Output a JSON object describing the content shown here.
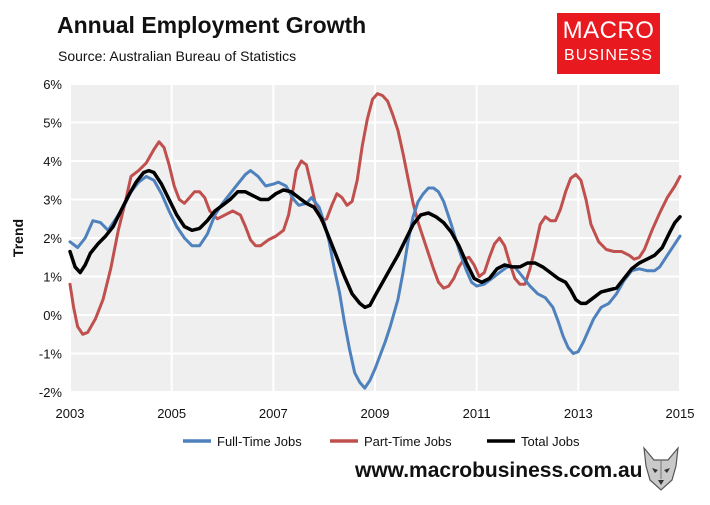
{
  "header": {
    "title": "Annual Employment Growth",
    "subtitle": "Source: Australian Bureau of Statistics"
  },
  "logo": {
    "line1": "MACRO",
    "line2": "BUSINESS",
    "color": "#e8191f",
    "icon": "wolf-mascot-icon"
  },
  "footer": {
    "website": "www.macrobusiness.com.au"
  },
  "chart_data": {
    "type": "line",
    "title": "Annual Employment Growth",
    "xlabel": "",
    "ylabel": "Trend",
    "xlim": [
      2003,
      2015
    ],
    "ylim": [
      -2,
      6
    ],
    "x_ticks": [
      "2003",
      "2005",
      "2007",
      "2009",
      "2011",
      "2013",
      "2015"
    ],
    "x_tick_values": [
      2003,
      2005,
      2007,
      2009,
      2011,
      2013,
      2015
    ],
    "y_ticks": [
      "-2%",
      "-1%",
      "0%",
      "1%",
      "2%",
      "3%",
      "4%",
      "5%",
      "6%"
    ],
    "y_tick_values": [
      -2,
      -1,
      0,
      1,
      2,
      3,
      4,
      5,
      6
    ],
    "grid": true,
    "legend": "bottom",
    "plot_background": "#efefef",
    "series": [
      {
        "name": "Full-Time Jobs",
        "color": "#4f81bd",
        "width": 3,
        "points": [
          [
            2003.0,
            1.9
          ],
          [
            2003.15,
            1.75
          ],
          [
            2003.3,
            2.0
          ],
          [
            2003.45,
            2.45
          ],
          [
            2003.6,
            2.4
          ],
          [
            2003.75,
            2.2
          ],
          [
            2003.9,
            2.5
          ],
          [
            2004.05,
            2.8
          ],
          [
            2004.2,
            3.2
          ],
          [
            2004.35,
            3.45
          ],
          [
            2004.5,
            3.6
          ],
          [
            2004.65,
            3.5
          ],
          [
            2004.8,
            3.15
          ],
          [
            2004.95,
            2.7
          ],
          [
            2005.1,
            2.3
          ],
          [
            2005.25,
            2.0
          ],
          [
            2005.4,
            1.8
          ],
          [
            2005.55,
            1.8
          ],
          [
            2005.7,
            2.1
          ],
          [
            2005.85,
            2.6
          ],
          [
            2006.0,
            2.9
          ],
          [
            2006.15,
            3.15
          ],
          [
            2006.3,
            3.4
          ],
          [
            2006.45,
            3.65
          ],
          [
            2006.55,
            3.75
          ],
          [
            2006.7,
            3.6
          ],
          [
            2006.85,
            3.35
          ],
          [
            2007.0,
            3.4
          ],
          [
            2007.1,
            3.45
          ],
          [
            2007.25,
            3.35
          ],
          [
            2007.4,
            3.0
          ],
          [
            2007.5,
            2.85
          ],
          [
            2007.65,
            2.9
          ],
          [
            2007.75,
            3.05
          ],
          [
            2007.9,
            2.8
          ],
          [
            2008.0,
            2.4
          ],
          [
            2008.1,
            1.9
          ],
          [
            2008.2,
            1.2
          ],
          [
            2008.3,
            0.6
          ],
          [
            2008.4,
            -0.2
          ],
          [
            2008.5,
            -0.9
          ],
          [
            2008.6,
            -1.5
          ],
          [
            2008.7,
            -1.75
          ],
          [
            2008.8,
            -1.9
          ],
          [
            2008.9,
            -1.7
          ],
          [
            2009.0,
            -1.4
          ],
          [
            2009.1,
            -1.05
          ],
          [
            2009.2,
            -0.7
          ],
          [
            2009.3,
            -0.3
          ],
          [
            2009.45,
            0.4
          ],
          [
            2009.55,
            1.1
          ],
          [
            2009.65,
            1.9
          ],
          [
            2009.75,
            2.55
          ],
          [
            2009.85,
            2.95
          ],
          [
            2009.95,
            3.15
          ],
          [
            2010.05,
            3.3
          ],
          [
            2010.15,
            3.3
          ],
          [
            2010.25,
            3.2
          ],
          [
            2010.35,
            2.95
          ],
          [
            2010.5,
            2.35
          ],
          [
            2010.65,
            1.7
          ],
          [
            2010.8,
            1.15
          ],
          [
            2010.9,
            0.85
          ],
          [
            2011.0,
            0.75
          ],
          [
            2011.15,
            0.8
          ],
          [
            2011.3,
            0.95
          ],
          [
            2011.45,
            1.1
          ],
          [
            2011.6,
            1.25
          ],
          [
            2011.75,
            1.25
          ],
          [
            2011.9,
            1.0
          ],
          [
            2012.05,
            0.75
          ],
          [
            2012.2,
            0.55
          ],
          [
            2012.35,
            0.45
          ],
          [
            2012.5,
            0.2
          ],
          [
            2012.6,
            -0.15
          ],
          [
            2012.7,
            -0.55
          ],
          [
            2012.8,
            -0.85
          ],
          [
            2012.9,
            -1.0
          ],
          [
            2013.0,
            -0.95
          ],
          [
            2013.1,
            -0.7
          ],
          [
            2013.2,
            -0.4
          ],
          [
            2013.3,
            -0.1
          ],
          [
            2013.45,
            0.2
          ],
          [
            2013.6,
            0.3
          ],
          [
            2013.75,
            0.55
          ],
          [
            2013.9,
            0.9
          ],
          [
            2014.05,
            1.15
          ],
          [
            2014.2,
            1.2
          ],
          [
            2014.35,
            1.15
          ],
          [
            2014.5,
            1.15
          ],
          [
            2014.6,
            1.25
          ],
          [
            2014.75,
            1.55
          ],
          [
            2014.9,
            1.85
          ],
          [
            2015.0,
            2.05
          ]
        ]
      },
      {
        "name": "Part-Time Jobs",
        "color": "#c0504d",
        "width": 3,
        "points": [
          [
            2003.0,
            0.8
          ],
          [
            2003.07,
            0.2
          ],
          [
            2003.15,
            -0.3
          ],
          [
            2003.25,
            -0.5
          ],
          [
            2003.35,
            -0.45
          ],
          [
            2003.5,
            -0.1
          ],
          [
            2003.65,
            0.4
          ],
          [
            2003.8,
            1.2
          ],
          [
            2003.95,
            2.2
          ],
          [
            2004.1,
            3.0
          ],
          [
            2004.2,
            3.6
          ],
          [
            2004.35,
            3.75
          ],
          [
            2004.5,
            3.95
          ],
          [
            2004.65,
            4.3
          ],
          [
            2004.75,
            4.5
          ],
          [
            2004.85,
            4.35
          ],
          [
            2004.95,
            3.9
          ],
          [
            2005.05,
            3.35
          ],
          [
            2005.15,
            3.0
          ],
          [
            2005.25,
            2.9
          ],
          [
            2005.35,
            3.05
          ],
          [
            2005.45,
            3.2
          ],
          [
            2005.55,
            3.2
          ],
          [
            2005.65,
            3.05
          ],
          [
            2005.75,
            2.7
          ],
          [
            2005.9,
            2.5
          ],
          [
            2006.05,
            2.6
          ],
          [
            2006.2,
            2.7
          ],
          [
            2006.35,
            2.6
          ],
          [
            2006.45,
            2.3
          ],
          [
            2006.55,
            1.95
          ],
          [
            2006.65,
            1.8
          ],
          [
            2006.75,
            1.8
          ],
          [
            2006.9,
            1.95
          ],
          [
            2007.05,
            2.05
          ],
          [
            2007.2,
            2.2
          ],
          [
            2007.3,
            2.6
          ],
          [
            2007.4,
            3.35
          ],
          [
            2007.45,
            3.75
          ],
          [
            2007.55,
            4.0
          ],
          [
            2007.65,
            3.9
          ],
          [
            2007.75,
            3.35
          ],
          [
            2007.85,
            2.75
          ],
          [
            2007.95,
            2.45
          ],
          [
            2008.05,
            2.5
          ],
          [
            2008.15,
            2.85
          ],
          [
            2008.25,
            3.15
          ],
          [
            2008.35,
            3.05
          ],
          [
            2008.45,
            2.85
          ],
          [
            2008.55,
            2.95
          ],
          [
            2008.65,
            3.5
          ],
          [
            2008.75,
            4.4
          ],
          [
            2008.85,
            5.1
          ],
          [
            2008.95,
            5.6
          ],
          [
            2009.05,
            5.75
          ],
          [
            2009.15,
            5.7
          ],
          [
            2009.25,
            5.55
          ],
          [
            2009.35,
            5.2
          ],
          [
            2009.45,
            4.8
          ],
          [
            2009.55,
            4.2
          ],
          [
            2009.65,
            3.55
          ],
          [
            2009.75,
            2.9
          ],
          [
            2009.85,
            2.4
          ],
          [
            2009.95,
            2.0
          ],
          [
            2010.05,
            1.6
          ],
          [
            2010.15,
            1.2
          ],
          [
            2010.25,
            0.85
          ],
          [
            2010.35,
            0.7
          ],
          [
            2010.45,
            0.75
          ],
          [
            2010.55,
            0.95
          ],
          [
            2010.65,
            1.25
          ],
          [
            2010.75,
            1.45
          ],
          [
            2010.85,
            1.5
          ],
          [
            2010.95,
            1.3
          ],
          [
            2011.05,
            1.0
          ],
          [
            2011.15,
            1.1
          ],
          [
            2011.25,
            1.5
          ],
          [
            2011.35,
            1.85
          ],
          [
            2011.45,
            2.0
          ],
          [
            2011.55,
            1.8
          ],
          [
            2011.65,
            1.35
          ],
          [
            2011.75,
            0.95
          ],
          [
            2011.85,
            0.8
          ],
          [
            2011.95,
            0.8
          ],
          [
            2012.05,
            1.2
          ],
          [
            2012.15,
            1.75
          ],
          [
            2012.25,
            2.35
          ],
          [
            2012.35,
            2.55
          ],
          [
            2012.45,
            2.45
          ],
          [
            2012.55,
            2.45
          ],
          [
            2012.65,
            2.75
          ],
          [
            2012.75,
            3.2
          ],
          [
            2012.85,
            3.55
          ],
          [
            2012.95,
            3.65
          ],
          [
            2013.05,
            3.5
          ],
          [
            2013.15,
            3.0
          ],
          [
            2013.25,
            2.35
          ],
          [
            2013.4,
            1.9
          ],
          [
            2013.55,
            1.7
          ],
          [
            2013.7,
            1.65
          ],
          [
            2013.85,
            1.65
          ],
          [
            2014.0,
            1.55
          ],
          [
            2014.1,
            1.45
          ],
          [
            2014.2,
            1.5
          ],
          [
            2014.3,
            1.7
          ],
          [
            2014.45,
            2.2
          ],
          [
            2014.6,
            2.65
          ],
          [
            2014.75,
            3.05
          ],
          [
            2014.9,
            3.35
          ],
          [
            2015.0,
            3.6
          ]
        ]
      },
      {
        "name": "Total Jobs",
        "color": "#000000",
        "width": 3.5,
        "points": [
          [
            2003.0,
            1.65
          ],
          [
            2003.1,
            1.25
          ],
          [
            2003.2,
            1.1
          ],
          [
            2003.3,
            1.3
          ],
          [
            2003.4,
            1.6
          ],
          [
            2003.55,
            1.85
          ],
          [
            2003.7,
            2.05
          ],
          [
            2003.85,
            2.3
          ],
          [
            2004.0,
            2.7
          ],
          [
            2004.15,
            3.1
          ],
          [
            2004.3,
            3.45
          ],
          [
            2004.45,
            3.7
          ],
          [
            2004.55,
            3.75
          ],
          [
            2004.65,
            3.7
          ],
          [
            2004.8,
            3.4
          ],
          [
            2004.95,
            3.0
          ],
          [
            2005.1,
            2.6
          ],
          [
            2005.25,
            2.3
          ],
          [
            2005.4,
            2.2
          ],
          [
            2005.55,
            2.25
          ],
          [
            2005.7,
            2.45
          ],
          [
            2005.85,
            2.7
          ],
          [
            2006.0,
            2.85
          ],
          [
            2006.15,
            3.0
          ],
          [
            2006.3,
            3.2
          ],
          [
            2006.45,
            3.2
          ],
          [
            2006.6,
            3.1
          ],
          [
            2006.75,
            3.0
          ],
          [
            2006.9,
            3.0
          ],
          [
            2007.05,
            3.15
          ],
          [
            2007.2,
            3.25
          ],
          [
            2007.35,
            3.2
          ],
          [
            2007.5,
            3.05
          ],
          [
            2007.65,
            2.9
          ],
          [
            2007.8,
            2.8
          ],
          [
            2007.95,
            2.5
          ],
          [
            2008.1,
            2.0
          ],
          [
            2008.25,
            1.5
          ],
          [
            2008.4,
            1.0
          ],
          [
            2008.55,
            0.55
          ],
          [
            2008.7,
            0.3
          ],
          [
            2008.8,
            0.2
          ],
          [
            2008.9,
            0.25
          ],
          [
            2009.0,
            0.5
          ],
          [
            2009.15,
            0.85
          ],
          [
            2009.3,
            1.2
          ],
          [
            2009.45,
            1.55
          ],
          [
            2009.6,
            1.95
          ],
          [
            2009.75,
            2.35
          ],
          [
            2009.9,
            2.6
          ],
          [
            2010.05,
            2.65
          ],
          [
            2010.2,
            2.55
          ],
          [
            2010.35,
            2.4
          ],
          [
            2010.5,
            2.15
          ],
          [
            2010.65,
            1.8
          ],
          [
            2010.8,
            1.35
          ],
          [
            2010.95,
            0.95
          ],
          [
            2011.1,
            0.85
          ],
          [
            2011.25,
            0.95
          ],
          [
            2011.4,
            1.2
          ],
          [
            2011.55,
            1.3
          ],
          [
            2011.7,
            1.25
          ],
          [
            2011.85,
            1.25
          ],
          [
            2012.0,
            1.35
          ],
          [
            2012.15,
            1.35
          ],
          [
            2012.3,
            1.25
          ],
          [
            2012.45,
            1.1
          ],
          [
            2012.6,
            0.95
          ],
          [
            2012.75,
            0.85
          ],
          [
            2012.85,
            0.65
          ],
          [
            2012.95,
            0.4
          ],
          [
            2013.05,
            0.3
          ],
          [
            2013.15,
            0.3
          ],
          [
            2013.3,
            0.45
          ],
          [
            2013.45,
            0.6
          ],
          [
            2013.6,
            0.65
          ],
          [
            2013.75,
            0.7
          ],
          [
            2013.9,
            0.95
          ],
          [
            2014.05,
            1.2
          ],
          [
            2014.2,
            1.35
          ],
          [
            2014.35,
            1.45
          ],
          [
            2014.5,
            1.55
          ],
          [
            2014.65,
            1.75
          ],
          [
            2014.8,
            2.15
          ],
          [
            2014.9,
            2.4
          ],
          [
            2015.0,
            2.55
          ]
        ]
      }
    ]
  }
}
